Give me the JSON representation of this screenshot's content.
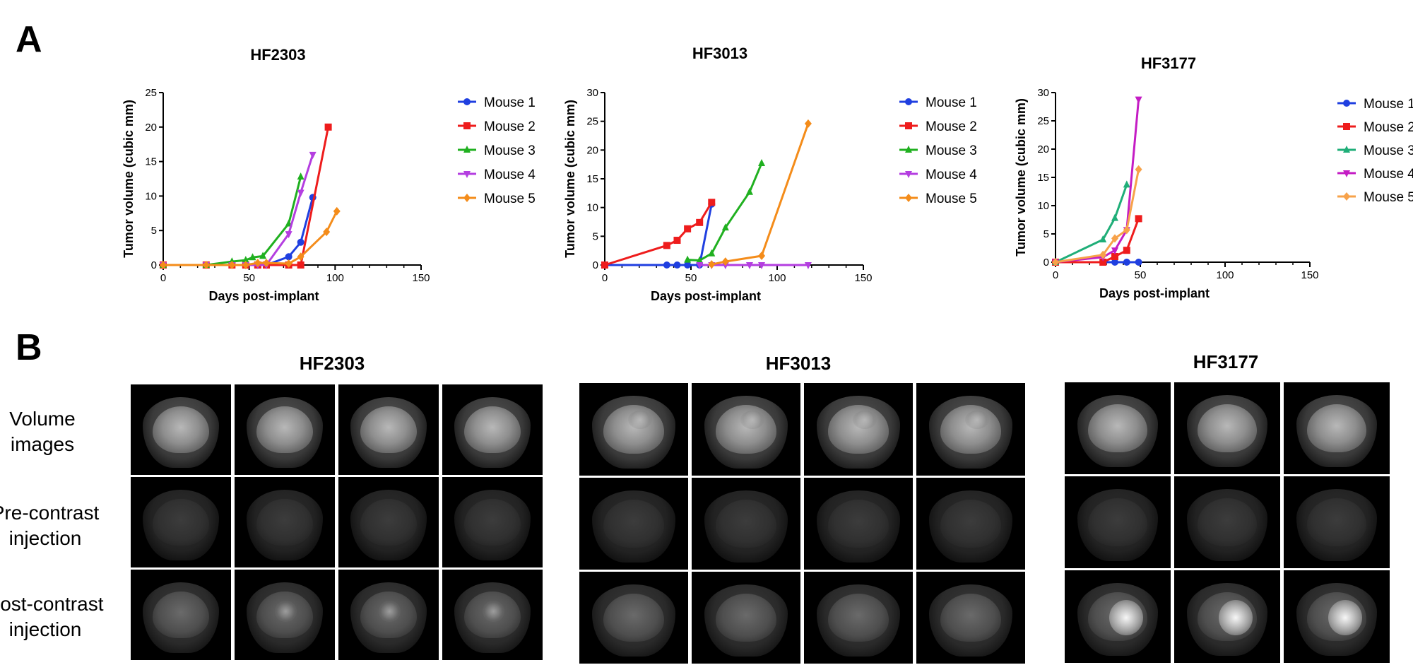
{
  "panels": {
    "a_letter": "A",
    "b_letter": "B"
  },
  "chart_data": [
    {
      "type": "line",
      "title": "HF2303",
      "xlabel": "Days post-implant",
      "ylabel": "Tumor volume (cubic mm)",
      "xlim": [
        0,
        150
      ],
      "ylim": [
        0,
        25
      ],
      "xticks": [
        "0",
        "50",
        "100",
        "150"
      ],
      "yticks": [
        "0",
        "5",
        "10",
        "15",
        "20",
        "25"
      ],
      "legend_placement": "right",
      "series": [
        {
          "name": "Mouse 1",
          "color": "#1f3fe0",
          "marker": "circle",
          "x": [
            0,
            25,
            40,
            48,
            55,
            60,
            73,
            80,
            87
          ],
          "y": [
            0,
            0,
            0,
            0,
            0,
            0,
            1.2,
            3.3,
            9.8
          ]
        },
        {
          "name": "Mouse 2",
          "color": "#ee1c1c",
          "marker": "square",
          "x": [
            0,
            25,
            40,
            48,
            55,
            60,
            73,
            80,
            96
          ],
          "y": [
            0,
            0,
            0,
            0,
            0,
            0,
            0,
            0,
            20
          ]
        },
        {
          "name": "Mouse 3",
          "color": "#20b020",
          "marker": "triangle-up",
          "x": [
            0,
            25,
            40,
            48,
            52,
            58,
            73,
            80
          ],
          "y": [
            0,
            0,
            0.5,
            0.7,
            1.1,
            1.3,
            6,
            12.8
          ]
        },
        {
          "name": "Mouse 4",
          "color": "#b43ee0",
          "marker": "triangle-down",
          "x": [
            0,
            25,
            40,
            48,
            55,
            60,
            73,
            80,
            87
          ],
          "y": [
            0,
            0,
            0,
            0,
            0,
            0,
            4.5,
            10.5,
            16
          ]
        },
        {
          "name": "Mouse 5",
          "color": "#f48c1a",
          "marker": "diamond",
          "x": [
            0,
            25,
            40,
            48,
            55,
            60,
            73,
            80,
            95,
            101
          ],
          "y": [
            0,
            0,
            0,
            0,
            0.3,
            0.3,
            0.2,
            1.2,
            4.8,
            7.8
          ]
        }
      ]
    },
    {
      "type": "line",
      "title": "HF3013",
      "xlabel": "Days post-implant",
      "ylabel": "Tumor volume (cubic mm)",
      "xlim": [
        0,
        150
      ],
      "ylim": [
        0,
        30
      ],
      "xticks": [
        "0",
        "50",
        "100",
        "150"
      ],
      "yticks": [
        "0",
        "5",
        "10",
        "15",
        "20",
        "25",
        "30"
      ],
      "legend_placement": "right",
      "series": [
        {
          "name": "Mouse 1",
          "color": "#1f3fe0",
          "marker": "circle",
          "x": [
            0,
            36,
            42,
            48,
            55,
            62
          ],
          "y": [
            0,
            0,
            0,
            0,
            0,
            10.6
          ]
        },
        {
          "name": "Mouse 2",
          "color": "#ee1c1c",
          "marker": "square",
          "x": [
            0,
            36,
            42,
            48,
            55,
            62
          ],
          "y": [
            0,
            3.4,
            4.3,
            6.3,
            7.4,
            10.9
          ]
        },
        {
          "name": "Mouse 3",
          "color": "#20b020",
          "marker": "triangle-up",
          "x": [
            48,
            55,
            62,
            70,
            84,
            91
          ],
          "y": [
            0.9,
            0.8,
            2,
            6.5,
            12.7,
            17.7
          ]
        },
        {
          "name": "Mouse 4",
          "color": "#b43ee0",
          "marker": "triangle-down",
          "x": [
            55,
            62,
            70,
            84,
            91,
            118
          ],
          "y": [
            0,
            0,
            0,
            0,
            0,
            0
          ]
        },
        {
          "name": "Mouse 5",
          "color": "#f48c1a",
          "marker": "diamond",
          "x": [
            62,
            70,
            91,
            118
          ],
          "y": [
            0.1,
            0.6,
            1.6,
            24.6
          ]
        }
      ]
    },
    {
      "type": "line",
      "title": "HF3177",
      "xlabel": "Days post-implant",
      "ylabel": "Tumor volume (cubic mm)",
      "xlim": [
        0,
        150
      ],
      "ylim": [
        0,
        30
      ],
      "xticks": [
        "0",
        "50",
        "100",
        "150"
      ],
      "yticks": [
        "0",
        "5",
        "10",
        "15",
        "20",
        "25",
        "30"
      ],
      "legend_placement": "right",
      "series": [
        {
          "name": "Mouse 1",
          "color": "#1f3fe0",
          "marker": "circle",
          "x": [
            0,
            28,
            35,
            42,
            49
          ],
          "y": [
            0,
            0,
            0,
            0,
            0
          ]
        },
        {
          "name": "Mouse 2",
          "color": "#ee1c1c",
          "marker": "square",
          "x": [
            0,
            28,
            35,
            42,
            49
          ],
          "y": [
            0,
            0,
            1,
            2.1,
            7.7
          ]
        },
        {
          "name": "Mouse 3",
          "color": "#1fae78",
          "marker": "triangle-up",
          "x": [
            0,
            28,
            35,
            42
          ],
          "y": [
            0,
            4,
            7.8,
            13.7
          ]
        },
        {
          "name": "Mouse 4",
          "color": "#c41cc4",
          "marker": "triangle-down",
          "x": [
            0,
            28,
            35,
            42,
            49
          ],
          "y": [
            0,
            0.9,
            2.1,
            5.7,
            28.8
          ]
        },
        {
          "name": "Mouse 5",
          "color": "#f7a24a",
          "marker": "diamond",
          "x": [
            0,
            28,
            35,
            42,
            49
          ],
          "y": [
            0,
            1.3,
            4.2,
            5.7,
            16.4
          ]
        }
      ]
    }
  ],
  "mri_panel": {
    "row_labels": [
      "Volume images",
      "Pre-contrast injection",
      "Post-contrast injection"
    ],
    "groups": [
      {
        "title": "HF2303",
        "lesions": [
          "none",
          "none",
          "none",
          "none"
        ]
      },
      {
        "title": "HF3013",
        "lesions": [
          "none",
          "none",
          "none",
          "none"
        ]
      },
      {
        "title": "HF3177",
        "lesions": [
          "none",
          "none",
          "none"
        ]
      }
    ]
  }
}
